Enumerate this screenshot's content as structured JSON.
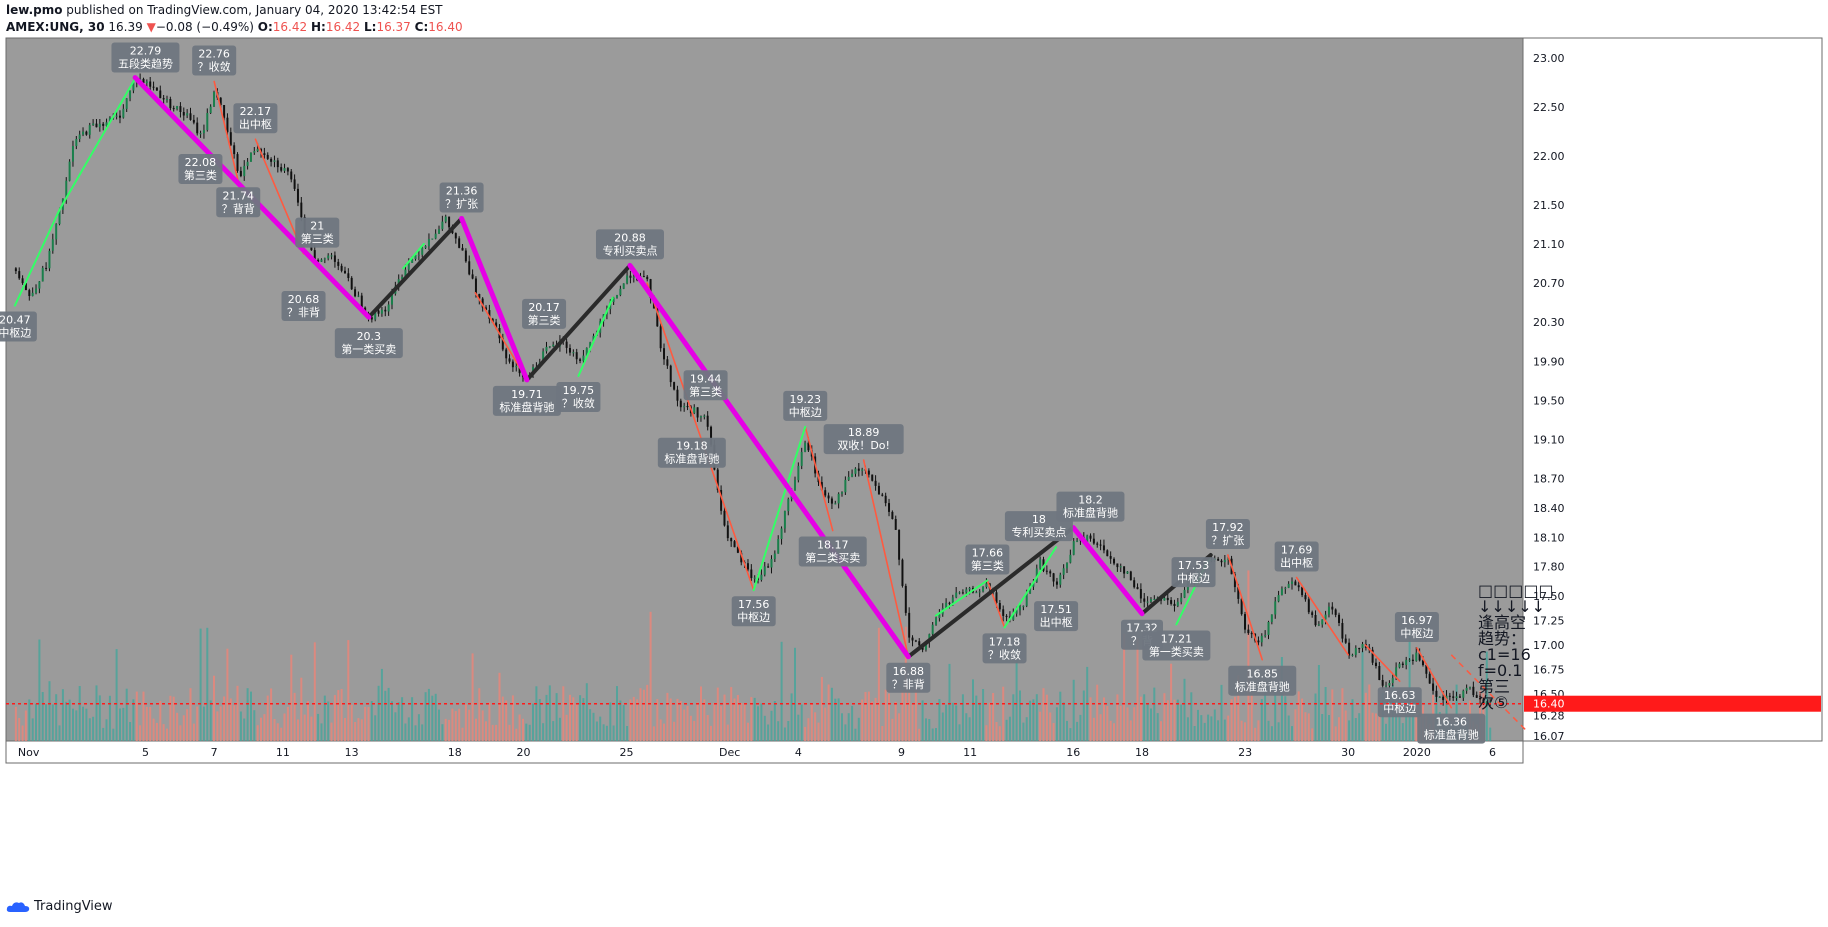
{
  "header": {
    "author": "lew.pmo",
    "published": "published on TradingView.com, January 04, 2020 13:42:54 EST",
    "symbol": "AMEX:UNG, 30",
    "last": "16.39",
    "change_arrow": "▼",
    "change": "−0.08 (−0.49%)",
    "o_label": "O:",
    "o_value": "16.42",
    "h_label": "H:",
    "h_value": "16.42",
    "l_label": "L:",
    "l_value": "16.37",
    "c_label": "C:",
    "c_value": "16.40"
  },
  "footer": {
    "brand": "TradingView",
    "logo_icon": "tradingview-cloud-icon"
  },
  "colors": {
    "plot_bg": "#9b9b9b",
    "stroke_purple": "#e600e6",
    "stroke_black": "#2a2a2a",
    "seg_red": "#ff5a40",
    "seg_green": "#33ff66",
    "vol_red": "#e8867a",
    "vol_teal": "#4aa59b",
    "price_line": "#ff1a1a",
    "label_box": "#6f7680"
  },
  "chart_data": {
    "type": "candlestick",
    "symbol": "AMEX:UNG",
    "interval": "30",
    "y_ticks": [
      "23.00",
      "22.50",
      "22.00",
      "21.50",
      "21.10",
      "20.70",
      "20.30",
      "19.90",
      "19.50",
      "19.10",
      "18.70",
      "18.40",
      "18.10",
      "17.80",
      "17.50",
      "17.25",
      "17.00",
      "16.75",
      "16.50",
      "16.28",
      "16.07"
    ],
    "x_ticks": [
      {
        "label": "Nov",
        "x": 0.6
      },
      {
        "label": "5",
        "x": 4
      },
      {
        "label": "7",
        "x": 6
      },
      {
        "label": "11",
        "x": 8
      },
      {
        "label": "13",
        "x": 10
      },
      {
        "label": "18",
        "x": 13
      },
      {
        "label": "20",
        "x": 15
      },
      {
        "label": "25",
        "x": 18
      },
      {
        "label": "Dec",
        "x": 21
      },
      {
        "label": "4",
        "x": 23
      },
      {
        "label": "9",
        "x": 26
      },
      {
        "label": "11",
        "x": 28
      },
      {
        "label": "16",
        "x": 31
      },
      {
        "label": "18",
        "x": 33
      },
      {
        "label": "23",
        "x": 36
      },
      {
        "label": "30",
        "x": 39
      },
      {
        "label": "2020",
        "x": 41
      },
      {
        "label": "6",
        "x": 43.2
      }
    ],
    "current_price": 16.4,
    "current_price_label": "16.40",
    "price_path": [
      [
        0.2,
        20.85
      ],
      [
        0.6,
        20.55
      ],
      [
        1.1,
        20.9
      ],
      [
        1.5,
        21.45
      ],
      [
        1.9,
        22.15
      ],
      [
        2.4,
        22.3
      ],
      [
        3.2,
        22.4
      ],
      [
        3.7,
        22.8
      ],
      [
        4.2,
        22.7
      ],
      [
        4.6,
        22.55
      ],
      [
        5.2,
        22.4
      ],
      [
        5.6,
        22.2
      ],
      [
        6,
        22.7
      ],
      [
        6.3,
        22.3
      ],
      [
        6.7,
        21.8
      ],
      [
        7.2,
        22.1
      ],
      [
        7.7,
        21.95
      ],
      [
        8.2,
        21.8
      ],
      [
        8.6,
        21.2
      ],
      [
        9,
        20.9
      ],
      [
        9.4,
        21.0
      ],
      [
        9.9,
        20.7
      ],
      [
        10.5,
        20.35
      ],
      [
        11,
        20.45
      ],
      [
        11.5,
        20.85
      ],
      [
        12.1,
        21.1
      ],
      [
        12.7,
        21.35
      ],
      [
        13.2,
        21.0
      ],
      [
        13.6,
        20.6
      ],
      [
        14.1,
        20.3
      ],
      [
        14.6,
        19.85
      ],
      [
        15.1,
        19.75
      ],
      [
        15.6,
        20.0
      ],
      [
        16.1,
        20.1
      ],
      [
        16.6,
        19.9
      ],
      [
        17.1,
        20.2
      ],
      [
        17.6,
        20.55
      ],
      [
        18.1,
        20.8
      ],
      [
        18.6,
        20.7
      ],
      [
        19.0,
        20.0
      ],
      [
        19.5,
        19.45
      ],
      [
        19.9,
        19.4
      ],
      [
        20.3,
        19.3
      ],
      [
        20.8,
        18.2
      ],
      [
        21.3,
        17.85
      ],
      [
        21.7,
        17.65
      ],
      [
        22.2,
        17.85
      ],
      [
        22.7,
        18.5
      ],
      [
        23.2,
        19.1
      ],
      [
        23.6,
        18.6
      ],
      [
        24,
        18.45
      ],
      [
        24.5,
        18.75
      ],
      [
        24.9,
        18.8
      ],
      [
        25.4,
        18.5
      ],
      [
        25.8,
        18.2
      ],
      [
        26.2,
        17.05
      ],
      [
        26.6,
        16.95
      ],
      [
        27,
        17.3
      ],
      [
        27.5,
        17.5
      ],
      [
        28,
        17.55
      ],
      [
        28.5,
        17.6
      ],
      [
        29,
        17.25
      ],
      [
        29.5,
        17.4
      ],
      [
        30,
        17.85
      ],
      [
        30.5,
        17.6
      ],
      [
        31,
        18.05
      ],
      [
        31.5,
        18.1
      ],
      [
        32,
        17.9
      ],
      [
        32.5,
        17.75
      ],
      [
        33,
        17.45
      ],
      [
        33.5,
        17.5
      ],
      [
        34,
        17.4
      ],
      [
        34.5,
        17.75
      ],
      [
        35,
        17.85
      ],
      [
        35.5,
        17.85
      ],
      [
        36,
        17.1
      ],
      [
        36.5,
        17.05
      ],
      [
        37,
        17.6
      ],
      [
        37.5,
        17.65
      ],
      [
        38,
        17.2
      ],
      [
        38.5,
        17.4
      ],
      [
        39,
        16.9
      ],
      [
        39.5,
        17.0
      ],
      [
        40,
        16.55
      ],
      [
        40.5,
        16.8
      ],
      [
        41,
        16.9
      ],
      [
        41.5,
        16.45
      ],
      [
        42,
        16.45
      ],
      [
        42.5,
        16.55
      ],
      [
        43,
        16.4
      ]
    ],
    "strokes_purple": [
      [
        [
          3.7,
          22.8
        ],
        [
          10.5,
          20.35
        ]
      ],
      [
        [
          13.2,
          21.36
        ],
        [
          15.1,
          19.71
        ]
      ],
      [
        [
          18.1,
          20.88
        ],
        [
          26.2,
          16.88
        ]
      ],
      [
        [
          31,
          18.2
        ],
        [
          33,
          17.32
        ]
      ]
    ],
    "strokes_black": [
      [
        [
          10.5,
          20.35
        ],
        [
          13.2,
          21.36
        ]
      ],
      [
        [
          15.1,
          19.71
        ],
        [
          18.1,
          20.88
        ]
      ],
      [
        [
          26.2,
          16.88
        ],
        [
          31,
          18.2
        ]
      ],
      [
        [
          33,
          17.32
        ],
        [
          35,
          17.92
        ]
      ]
    ],
    "segments_red": [
      [
        [
          6,
          22.76
        ],
        [
          6.7,
          21.74
        ]
      ],
      [
        [
          7.2,
          22.17
        ],
        [
          8.6,
          21.0
        ]
      ],
      [
        [
          13.6,
          20.6
        ],
        [
          15.1,
          19.71
        ]
      ],
      [
        [
          18.6,
          20.7
        ],
        [
          21.7,
          17.56
        ]
      ],
      [
        [
          23.2,
          19.23
        ],
        [
          24,
          18.17
        ]
      ],
      [
        [
          24.9,
          18.89
        ],
        [
          26.2,
          16.88
        ]
      ],
      [
        [
          28.5,
          17.66
        ],
        [
          29,
          17.18
        ]
      ],
      [
        [
          35.5,
          17.92
        ],
        [
          36.5,
          16.85
        ]
      ],
      [
        [
          37.5,
          17.69
        ],
        [
          39,
          16.9
        ]
      ],
      [
        [
          39.5,
          17.0
        ],
        [
          40.5,
          16.63
        ]
      ],
      [
        [
          41,
          16.97
        ],
        [
          42,
          16.36
        ]
      ]
    ],
    "segments_green": [
      [
        [
          0.2,
          20.47
        ],
        [
          1.5,
          21.45
        ]
      ],
      [
        [
          1.5,
          21.45
        ],
        [
          3.7,
          22.79
        ]
      ],
      [
        [
          11.5,
          20.85
        ],
        [
          12.1,
          21.1
        ]
      ],
      [
        [
          16.6,
          19.75
        ],
        [
          17.6,
          20.55
        ]
      ],
      [
        [
          21.7,
          17.56
        ],
        [
          23.2,
          19.23
        ]
      ],
      [
        [
          27,
          17.3
        ],
        [
          28.5,
          17.66
        ]
      ],
      [
        [
          29,
          17.18
        ],
        [
          30.5,
          18.0
        ]
      ],
      [
        [
          34,
          17.21
        ],
        [
          35,
          17.92
        ]
      ]
    ],
    "annotations": [
      {
        "value": "22.79",
        "text": "五段类趋势",
        "x": 4.0,
        "y": 22.79,
        "pos": "above"
      },
      {
        "value": "22.76",
        "text": "？收敛",
        "x": 6.0,
        "y": 22.76,
        "pos": "above"
      },
      {
        "value": "22.17",
        "text": "出中枢",
        "x": 7.2,
        "y": 22.17,
        "pos": "above"
      },
      {
        "value": "22.08",
        "text": "第三类",
        "x": 5.6,
        "y": 22.08,
        "pos": "below"
      },
      {
        "value": "21.74",
        "text": "？背背",
        "x": 6.7,
        "y": 21.74,
        "pos": "below"
      },
      {
        "value": "21",
        "text": "第三类",
        "x": 9.0,
        "y": 21.0,
        "pos": "above"
      },
      {
        "value": "20.68",
        "text": "？非背",
        "x": 8.6,
        "y": 20.68,
        "pos": "below"
      },
      {
        "value": "20.47",
        "text": "中枢边",
        "x": 0.2,
        "y": 20.47,
        "pos": "below"
      },
      {
        "value": "21.36",
        "text": "？扩张",
        "x": 13.2,
        "y": 21.36,
        "pos": "above"
      },
      {
        "value": "20.3",
        "text": "第一类买卖",
        "x": 10.5,
        "y": 20.3,
        "pos": "below"
      },
      {
        "value": "20.17",
        "text": "第三类",
        "x": 15.6,
        "y": 20.17,
        "pos": "above"
      },
      {
        "value": "19.71",
        "text": "标准盘背驰",
        "x": 15.1,
        "y": 19.71,
        "pos": "below"
      },
      {
        "value": "19.75",
        "text": "？收敛",
        "x": 16.6,
        "y": 19.75,
        "pos": "below"
      },
      {
        "value": "20.88",
        "text": "专利买卖点",
        "x": 18.1,
        "y": 20.88,
        "pos": "above"
      },
      {
        "value": "19.44",
        "text": "第三类",
        "x": 20.3,
        "y": 19.44,
        "pos": "above"
      },
      {
        "value": "19.18",
        "text": "标准盘背驰",
        "x": 19.9,
        "y": 19.18,
        "pos": "below"
      },
      {
        "value": "19.23",
        "text": "中枢边",
        "x": 23.2,
        "y": 19.23,
        "pos": "above"
      },
      {
        "value": "18.89",
        "text": "双收！Do!",
        "x": 24.9,
        "y": 18.89,
        "pos": "above"
      },
      {
        "value": "18.17",
        "text": "第二类买卖",
        "x": 24.0,
        "y": 18.17,
        "pos": "below"
      },
      {
        "value": "17.56",
        "text": "中枢边",
        "x": 21.7,
        "y": 17.56,
        "pos": "below"
      },
      {
        "value": "16.88",
        "text": "？非背",
        "x": 26.2,
        "y": 16.88,
        "pos": "below"
      },
      {
        "value": "17.66",
        "text": "第三类",
        "x": 28.5,
        "y": 17.66,
        "pos": "above"
      },
      {
        "value": "17.18",
        "text": "？收敛",
        "x": 29.0,
        "y": 17.18,
        "pos": "below"
      },
      {
        "value": "18",
        "text": "专利买卖点",
        "x": 30.0,
        "y": 18.0,
        "pos": "above"
      },
      {
        "value": "17.51",
        "text": "出中枢",
        "x": 30.5,
        "y": 17.51,
        "pos": "below"
      },
      {
        "value": "18.2",
        "text": "标准盘背驰",
        "x": 31.5,
        "y": 18.2,
        "pos": "above"
      },
      {
        "value": "17.53",
        "text": "中枢边",
        "x": 34.5,
        "y": 17.53,
        "pos": "above"
      },
      {
        "value": "17.32",
        "text": "？背",
        "x": 33.0,
        "y": 17.32,
        "pos": "below"
      },
      {
        "value": "17.21",
        "text": "第一类买卖",
        "x": 34.0,
        "y": 17.21,
        "pos": "below"
      },
      {
        "value": "17.92",
        "text": "？扩张",
        "x": 35.5,
        "y": 17.92,
        "pos": "above"
      },
      {
        "value": "17.69",
        "text": "出中枢",
        "x": 37.5,
        "y": 17.69,
        "pos": "above"
      },
      {
        "value": "16.85",
        "text": "标准盘背驰",
        "x": 36.5,
        "y": 16.85,
        "pos": "below"
      },
      {
        "value": "16.97",
        "text": "中枢边",
        "x": 41.0,
        "y": 16.97,
        "pos": "above"
      },
      {
        "value": "16.63",
        "text": "中枢边",
        "x": 40.5,
        "y": 16.63,
        "pos": "below"
      },
      {
        "value": "16.36",
        "text": "标准盘背驰",
        "x": 42.0,
        "y": 16.36,
        "pos": "below"
      }
    ],
    "side_panel": [
      "□□□□□",
      "↓↓↓↓↓",
      "逢高空",
      "趋势：",
      "c1=16",
      "f=0.1",
      "第三",
      "次⑤"
    ]
  }
}
